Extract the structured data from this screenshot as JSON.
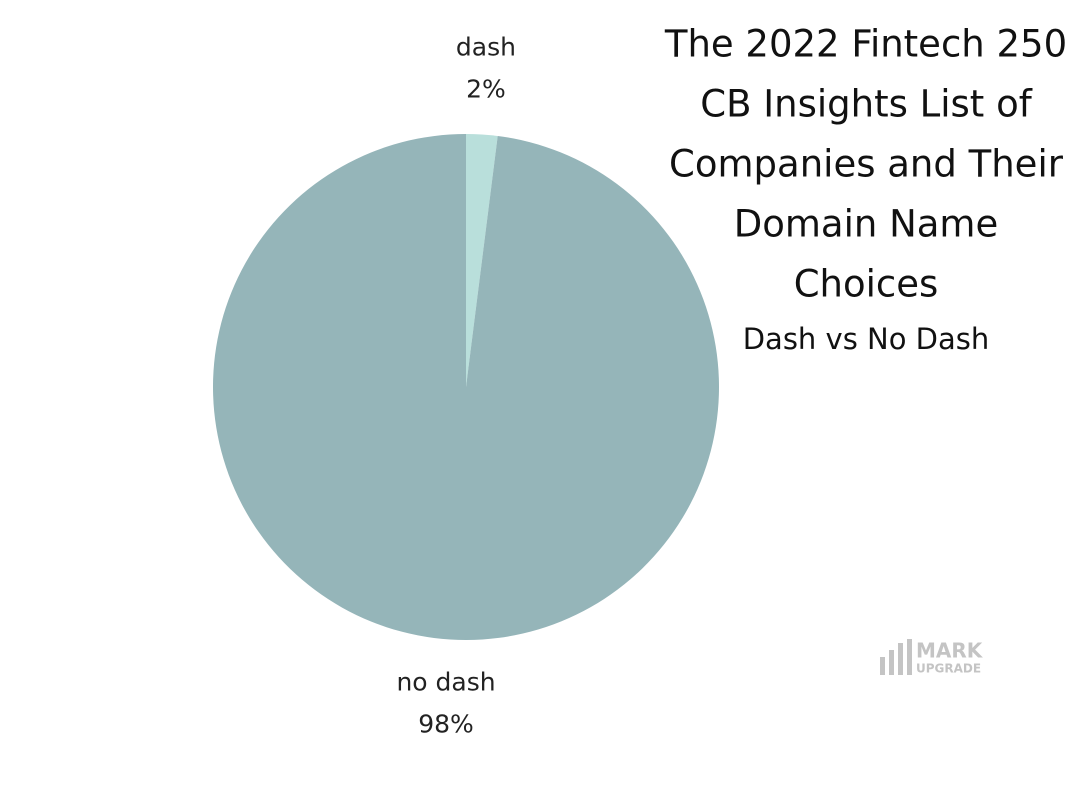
{
  "chart_data": {
    "type": "pie",
    "title": [
      "The 2022 Fintech 250",
      "CB Insights List of",
      "Companies and Their",
      "Domain Name",
      "Choices"
    ],
    "subtitle": "Dash vs No Dash",
    "categories": [
      "dash",
      "no dash"
    ],
    "values": [
      2,
      98
    ],
    "value_labels": [
      "2%",
      "98%"
    ],
    "colors": [
      "#b9dfdb",
      "#95b5b9"
    ]
  },
  "watermark": {
    "top": "MARK",
    "bottom": "UPGRADE"
  }
}
